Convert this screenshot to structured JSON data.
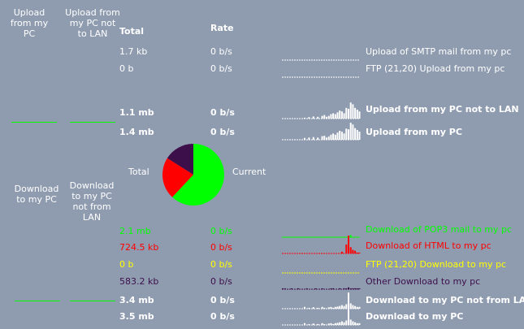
{
  "colors": {
    "background": "#8f9cb0",
    "white": "#ffffff",
    "green": "#00ff00",
    "red": "#ff0000",
    "yellow": "#ffff00",
    "purple": "#3d0f4a"
  },
  "headers": {
    "upload_my_pc": "Upload from my PC",
    "upload_not_lan": "Upload from my PC not to LAN",
    "download_my_pc": "Download to my PC",
    "download_not_lan": "Download to my PC not from LAN",
    "total": "Total",
    "rate": "Rate"
  },
  "upload_rows": [
    {
      "total": "1.7 kb",
      "rate": "0 b/s",
      "label": "Upload of SMTP mail from my pc",
      "color": "#ffffff",
      "bold": false
    },
    {
      "total": "0 b",
      "rate": "0 b/s",
      "label": "FTP (21,20) Upload from my pc",
      "color": "#ffffff",
      "bold": false
    },
    {
      "total": "1.1 mb",
      "rate": "0 b/s",
      "label": "Upload from my PC not to LAN",
      "color": "#ffffff",
      "bold": true
    },
    {
      "total": "1.4 mb",
      "rate": "0 b/s",
      "label": "Upload from my PC",
      "color": "#ffffff",
      "bold": true
    }
  ],
  "pie": {
    "label_total": "Total",
    "label_current": "Current",
    "slices": [
      {
        "name": "green",
        "color": "#00ff00",
        "fraction": 0.62
      },
      {
        "name": "red",
        "color": "#ff0000",
        "fraction": 0.22
      },
      {
        "name": "purple",
        "color": "#3d0f4a",
        "fraction": 0.16
      }
    ]
  },
  "download_rows": [
    {
      "total": "2.1 mb",
      "rate": "0 b/s",
      "label": "Download of POP3 mail to my pc",
      "color": "#00ff00",
      "bold": false
    },
    {
      "total": "724.5 kb",
      "rate": "0 b/s",
      "label": "Download of HTML to my pc",
      "color": "#ff0000",
      "bold": false
    },
    {
      "total": "0 b",
      "rate": "0 b/s",
      "label": "FTP (21,20) Download to my pc",
      "color": "#ffff00",
      "bold": false
    },
    {
      "total": "583.2 kb",
      "rate": "0 b/s",
      "label": "Other Download to my pc",
      "color": "#3d0f4a",
      "bold": false
    },
    {
      "total": "3.4 mb",
      "rate": "0 b/s",
      "label": "Download to my PC not from LAN",
      "color": "#ffffff",
      "bold": true
    },
    {
      "total": "3.5 mb",
      "rate": "0 b/s",
      "label": "Download to my PC",
      "color": "#ffffff",
      "bold": true
    }
  ],
  "sparklines": {
    "upload": [
      {
        "color": "#ffffff",
        "style": "dashed",
        "values": []
      },
      {
        "color": "#ffffff",
        "style": "dashed",
        "values": []
      },
      {
        "color": "#ffffff",
        "style": "bars",
        "values": [
          0,
          0,
          0,
          0,
          0,
          0,
          0,
          0,
          0,
          0,
          0.05,
          0,
          0.08,
          0,
          0.12,
          0,
          0.1,
          0,
          0.15,
          0.2,
          0.1,
          0.15,
          0.25,
          0.3,
          0.25,
          0.35,
          0.45,
          0.4,
          0.3,
          0.6,
          0.55,
          0.9,
          0.8,
          0.6,
          0.5,
          0.4
        ]
      },
      {
        "color": "#ffffff",
        "style": "bars",
        "values": [
          0,
          0,
          0,
          0,
          0,
          0,
          0,
          0,
          0,
          0,
          0.1,
          0,
          0.12,
          0,
          0.15,
          0,
          0.12,
          0,
          0.2,
          0.22,
          0.12,
          0.18,
          0.28,
          0.35,
          0.28,
          0.4,
          0.5,
          0.45,
          0.35,
          0.62,
          0.58,
          0.95,
          0.85,
          0.65,
          0.55,
          0.45
        ]
      }
    ],
    "download": [
      {
        "color": "#00ff00",
        "style": "line",
        "values": [
          0,
          0,
          0,
          0,
          0,
          0,
          0,
          0,
          0,
          0,
          0,
          0,
          0,
          0,
          0,
          0,
          0,
          0,
          0,
          0,
          0,
          0,
          0,
          0,
          0,
          0,
          0,
          0,
          0,
          0,
          0,
          0.12,
          0,
          0,
          0,
          0
        ]
      },
      {
        "color": "#ff0000",
        "style": "bars",
        "values": [
          0,
          0,
          0,
          0,
          0,
          0,
          0,
          0,
          0,
          0,
          0,
          0,
          0,
          0,
          0,
          0,
          0,
          0,
          0,
          0,
          0,
          0,
          0,
          0,
          0,
          0,
          0,
          0.1,
          0,
          0.5,
          1.0,
          0.35,
          0.2,
          0.15,
          0.05,
          0.05
        ]
      },
      {
        "color": "#ffff00",
        "style": "dashed",
        "values": []
      },
      {
        "color": "#3d0f4a",
        "style": "bars",
        "values": [
          0.05,
          0.05,
          0,
          0,
          0.05,
          0,
          0,
          0.05,
          0,
          0,
          0,
          0.05,
          0,
          0,
          0,
          0.05,
          0,
          0,
          0.05,
          0,
          0,
          0,
          0.05,
          0.05,
          0,
          0,
          0.05,
          0,
          0.05,
          0.05,
          0.1,
          0.05,
          0.05,
          0.05,
          0.05,
          0.05
        ]
      },
      {
        "color": "#ffffff",
        "style": "bars",
        "values": [
          0,
          0,
          0,
          0,
          0,
          0,
          0,
          0,
          0,
          0,
          0.1,
          0,
          0.05,
          0,
          0.08,
          0,
          0.05,
          0,
          0.1,
          0.05,
          0,
          0.08,
          0.1,
          0.05,
          0.1,
          0.12,
          0.15,
          0.2,
          0.15,
          0.25,
          0.9,
          0.3,
          0.2,
          0.15,
          0.1,
          0.1
        ]
      },
      {
        "color": "#ffffff",
        "style": "bars",
        "values": [
          0,
          0,
          0,
          0,
          0,
          0,
          0,
          0,
          0,
          0,
          0.1,
          0,
          0.05,
          0,
          0.08,
          0,
          0.05,
          0,
          0.1,
          0.05,
          0,
          0.08,
          0.1,
          0.05,
          0.1,
          0.12,
          0.15,
          0.2,
          0.15,
          0.25,
          0.95,
          0.3,
          0.2,
          0.15,
          0.1,
          0.1
        ]
      }
    ]
  }
}
